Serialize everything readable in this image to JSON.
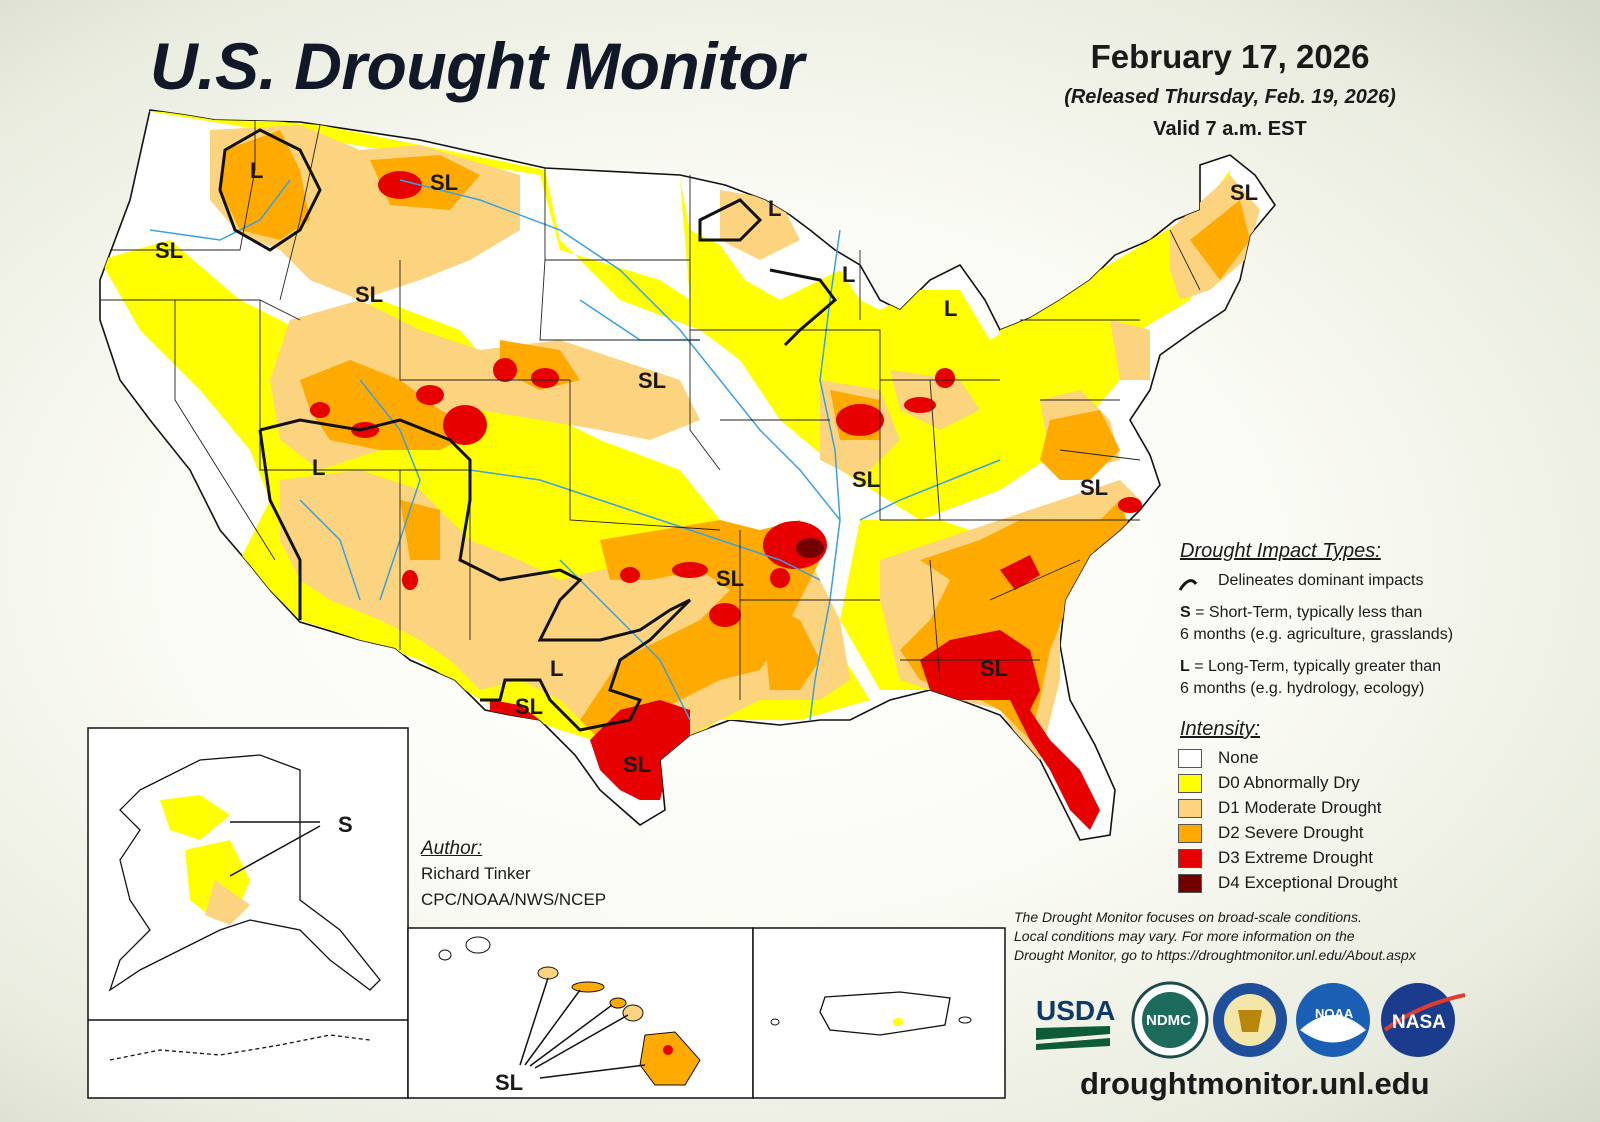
{
  "header": {
    "title": "U.S. Drought Monitor",
    "date": "February 17, 2026",
    "released": "(Released Thursday, Feb. 19, 2026)",
    "valid": "Valid 7 a.m. EST"
  },
  "map_labels": [
    {
      "id": "pnw",
      "text": "SL"
    },
    {
      "id": "idaho-l",
      "text": "L"
    },
    {
      "id": "montana",
      "text": "SL"
    },
    {
      "id": "idaho-s",
      "text": "SL"
    },
    {
      "id": "minn",
      "text": "L"
    },
    {
      "id": "wisc",
      "text": "L"
    },
    {
      "id": "mich",
      "text": "L"
    },
    {
      "id": "maine",
      "text": "SL"
    },
    {
      "id": "nebraska",
      "text": "SL"
    },
    {
      "id": "nevada",
      "text": "L"
    },
    {
      "id": "illinois",
      "text": "SL"
    },
    {
      "id": "virginia",
      "text": "SL"
    },
    {
      "id": "okla",
      "text": "SL"
    },
    {
      "id": "tx-w",
      "text": "L"
    },
    {
      "id": "tx-trans",
      "text": "SL"
    },
    {
      "id": "tx-s",
      "text": "SL"
    },
    {
      "id": "georgia",
      "text": "SL"
    },
    {
      "id": "alaska",
      "text": "S"
    },
    {
      "id": "hawaii",
      "text": "SL"
    }
  ],
  "impact_legend": {
    "heading": "Drought Impact Types:",
    "delineates": "Delineates dominant impacts",
    "s_key": "S",
    "s_desc_1": " = Short-Term, typically less than",
    "s_desc_2": "6 months (e.g. agriculture, grasslands)",
    "l_key": "L",
    "l_desc_1": " = Long-Term, typically greater than",
    "l_desc_2": "6 months (e.g. hydrology, ecology)"
  },
  "intensity_legend": {
    "heading": "Intensity:",
    "levels": [
      {
        "label": "None",
        "color": "#ffffff"
      },
      {
        "label": "D0 Abnormally Dry",
        "color": "#ffff00"
      },
      {
        "label": "D1 Moderate Drought",
        "color": "#fcd37f"
      },
      {
        "label": "D2 Severe Drought",
        "color": "#ffaa00"
      },
      {
        "label": "D3 Extreme Drought",
        "color": "#e60000"
      },
      {
        "label": "D4 Exceptional Drought",
        "color": "#730000"
      }
    ]
  },
  "author": {
    "heading": "Author:",
    "name": "Richard Tinker",
    "org": "CPC/NOAA/NWS/NCEP"
  },
  "footer": {
    "note_1": "The Drought Monitor focuses on broad-scale conditions.",
    "note_2": "Local conditions may vary. For more information on the",
    "note_3": "Drought Monitor, go to https://droughtmonitor.unl.edu/About.aspx",
    "site": "droughtmonitor.unl.edu"
  },
  "logos": {
    "usda": "USDA",
    "ndmc": "NDMC",
    "noaa": "NOAA",
    "nasa": "NASA"
  }
}
